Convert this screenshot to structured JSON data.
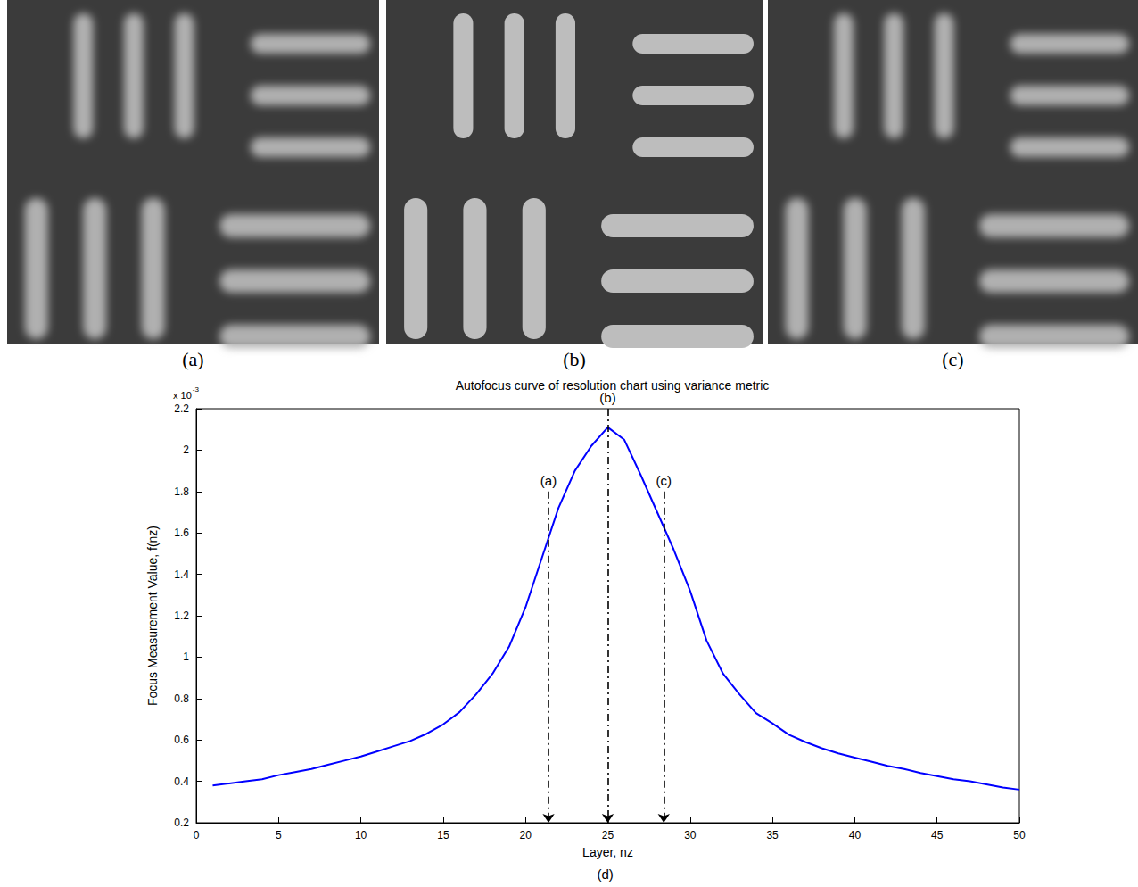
{
  "panels": [
    {
      "label": "(a)",
      "in_focus": false
    },
    {
      "label": "(b)",
      "in_focus": true
    },
    {
      "label": "(c)",
      "in_focus": false
    }
  ],
  "chart_data": {
    "type": "line",
    "title": "Autofocus curve of resolution chart using variance metric",
    "xlabel": "Layer, nz",
    "ylabel": "Focus Measurement Value, f(nz)",
    "y_scale_note": {
      "base": "x 10",
      "exponent": "-3"
    },
    "chart_label": "(d)",
    "x": [
      1,
      2,
      3,
      4,
      5,
      6,
      7,
      8,
      9,
      10,
      11,
      12,
      13,
      14,
      15,
      16,
      17,
      18,
      19,
      20,
      21,
      22,
      23,
      24,
      25,
      26,
      27,
      28,
      29,
      30,
      31,
      32,
      33,
      34,
      35,
      36,
      37,
      38,
      39,
      40,
      41,
      42,
      43,
      44,
      45,
      46,
      47,
      48,
      49,
      50
    ],
    "series": [
      {
        "name": "f(nz)",
        "color": "#0000ff",
        "values": [
          0.38,
          0.39,
          0.4,
          0.41,
          0.43,
          0.445,
          0.46,
          0.48,
          0.5,
          0.52,
          0.545,
          0.57,
          0.595,
          0.63,
          0.675,
          0.735,
          0.82,
          0.92,
          1.05,
          1.24,
          1.48,
          1.72,
          1.9,
          2.02,
          2.11,
          2.05,
          1.88,
          1.7,
          1.52,
          1.32,
          1.08,
          0.92,
          0.82,
          0.73,
          0.68,
          0.625,
          0.59,
          0.56,
          0.535,
          0.515,
          0.495,
          0.475,
          0.46,
          0.44,
          0.425,
          0.41,
          0.4,
          0.385,
          0.37,
          0.36
        ]
      }
    ],
    "annotations": [
      {
        "label": "(a)",
        "x": 21.4,
        "y_top": 1.8
      },
      {
        "label": "(b)",
        "x": 25,
        "y_top": 2.2
      },
      {
        "label": "(c)",
        "x": 28.4,
        "y_top": 1.8
      }
    ],
    "xlim": [
      0,
      50
    ],
    "xticks": [
      0,
      5,
      10,
      15,
      20,
      25,
      30,
      35,
      40,
      45,
      50
    ],
    "ylim": [
      0.2,
      2.2
    ],
    "yticks": [
      0.2,
      0.4,
      0.6,
      0.8,
      1,
      1.2,
      1.4,
      1.6,
      1.8,
      2,
      2.2
    ],
    "grid": false
  }
}
